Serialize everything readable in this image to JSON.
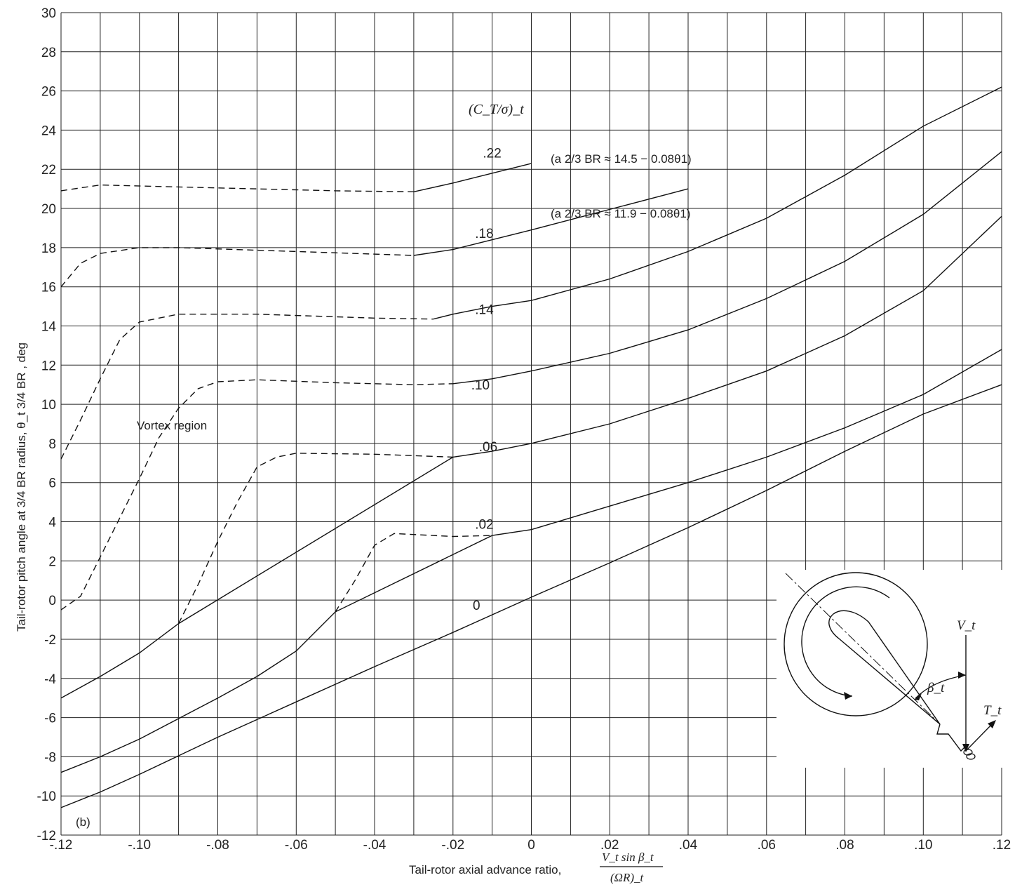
{
  "chart_data": {
    "type": "line",
    "panel_label": "(b)",
    "xlabel": "Tail-rotor axial advance ratio,",
    "xlabel_fraction": {
      "numerator": "V_t sin β_t",
      "denominator": "(ΩR)_t"
    },
    "ylabel": "Tail-rotor pitch angle at 3/4 BR radius, θ_t 3/4 BR , deg",
    "xlim": [
      -0.12,
      0.12
    ],
    "ylim": [
      -12,
      30
    ],
    "x_ticks": [
      "-.12",
      "-.10",
      "-.08",
      "-.06",
      "-.04",
      "-.02",
      "0",
      ".02",
      ".04",
      ".06",
      ".08",
      ".10",
      ".12"
    ],
    "y_ticks": [
      "-12",
      "-10",
      "-8",
      "-6",
      "-4",
      "-2",
      "0",
      "2",
      "4",
      "6",
      "8",
      "10",
      "12",
      "14",
      "16",
      "18",
      "20",
      "22",
      "24",
      "26",
      "28",
      "30"
    ],
    "legend_title": "(C_T/σ)_t",
    "annotations": {
      "vortex_region": "Vortex region",
      "note_upper": "(a 2/3 BR ≈ 14.5 − 0.08θ1)",
      "note_lower": "(a 2/3 BR ≈ 11.9 − 0.08θ1)"
    },
    "series": [
      {
        "name": ".22",
        "label_at": [
          -0.01,
          22.6
        ],
        "dashed": [
          [
            -0.12,
            20.9
          ],
          [
            -0.11,
            21.2
          ],
          [
            -0.09,
            21.1
          ],
          [
            -0.05,
            20.9
          ],
          [
            -0.03,
            20.85
          ]
        ],
        "solid": [
          [
            -0.03,
            20.85
          ],
          [
            -0.02,
            21.3
          ],
          [
            0.0,
            22.3
          ]
        ]
      },
      {
        "name": ".18",
        "label_at": [
          -0.012,
          18.5
        ],
        "dashed": [
          [
            -0.12,
            16.0
          ],
          [
            -0.115,
            17.2
          ],
          [
            -0.11,
            17.7
          ],
          [
            -0.1,
            18.0
          ],
          [
            -0.09,
            18.0
          ],
          [
            -0.06,
            17.8
          ],
          [
            -0.03,
            17.6
          ]
        ],
        "solid": [
          [
            -0.03,
            17.6
          ],
          [
            -0.02,
            17.9
          ],
          [
            0.0,
            18.9
          ],
          [
            0.04,
            21.0
          ]
        ]
      },
      {
        "name": ".14",
        "label_at": [
          -0.012,
          14.6
        ],
        "dashed": [
          [
            -0.12,
            7.2
          ],
          [
            -0.115,
            9.2
          ],
          [
            -0.11,
            11.3
          ],
          [
            -0.105,
            13.3
          ],
          [
            -0.1,
            14.2
          ],
          [
            -0.09,
            14.6
          ],
          [
            -0.07,
            14.6
          ],
          [
            -0.04,
            14.4
          ],
          [
            -0.025,
            14.35
          ]
        ],
        "solid": [
          [
            -0.025,
            14.35
          ],
          [
            -0.02,
            14.6
          ],
          [
            -0.01,
            15.0
          ],
          [
            0.0,
            15.3
          ],
          [
            0.02,
            16.4
          ],
          [
            0.04,
            17.8
          ],
          [
            0.06,
            19.5
          ],
          [
            0.08,
            21.7
          ],
          [
            0.1,
            24.2
          ],
          [
            0.12,
            26.2
          ]
        ]
      },
      {
        "name": ".10",
        "label_at": [
          -0.013,
          10.75
        ],
        "dashed": [
          [
            -0.12,
            -0.5
          ],
          [
            -0.115,
            0.2
          ],
          [
            -0.11,
            2.2
          ],
          [
            -0.105,
            4.2
          ],
          [
            -0.1,
            6.2
          ],
          [
            -0.095,
            8.3
          ],
          [
            -0.09,
            9.8
          ],
          [
            -0.085,
            10.8
          ],
          [
            -0.08,
            11.15
          ],
          [
            -0.07,
            11.25
          ],
          [
            -0.05,
            11.1
          ],
          [
            -0.03,
            11.0
          ],
          [
            -0.02,
            11.05
          ]
        ],
        "solid": [
          [
            -0.02,
            11.05
          ],
          [
            -0.01,
            11.3
          ],
          [
            0.0,
            11.7
          ],
          [
            0.02,
            12.6
          ],
          [
            0.04,
            13.8
          ],
          [
            0.06,
            15.4
          ],
          [
            0.08,
            17.3
          ],
          [
            0.1,
            19.7
          ],
          [
            0.12,
            22.9
          ]
        ]
      },
      {
        "name": ".06",
        "label_at": [
          -0.011,
          7.6
        ],
        "dashed": [
          [
            -0.09,
            -1.2
          ],
          [
            -0.085,
            0.8
          ],
          [
            -0.08,
            3.0
          ],
          [
            -0.075,
            5.0
          ],
          [
            -0.07,
            6.8
          ],
          [
            -0.065,
            7.3
          ],
          [
            -0.06,
            7.5
          ],
          [
            -0.04,
            7.45
          ],
          [
            -0.02,
            7.3
          ]
        ],
        "solid": [
          [
            -0.12,
            -5.0
          ],
          [
            -0.11,
            -3.9
          ],
          [
            -0.1,
            -2.7
          ],
          [
            -0.09,
            -1.2
          ],
          [
            -0.02,
            7.3
          ],
          [
            -0.01,
            7.6
          ],
          [
            0.0,
            8.0
          ],
          [
            0.02,
            9.0
          ],
          [
            0.04,
            10.3
          ],
          [
            0.06,
            11.7
          ],
          [
            0.08,
            13.5
          ],
          [
            0.1,
            15.8
          ],
          [
            0.12,
            19.6
          ]
        ]
      },
      {
        "name": ".02",
        "label_at": [
          -0.012,
          3.65
        ],
        "dashed": [
          [
            -0.05,
            -0.6
          ],
          [
            -0.045,
            1.0
          ],
          [
            -0.04,
            2.8
          ],
          [
            -0.035,
            3.4
          ],
          [
            -0.03,
            3.35
          ],
          [
            -0.02,
            3.25
          ],
          [
            -0.01,
            3.3
          ]
        ],
        "solid": [
          [
            -0.12,
            -8.8
          ],
          [
            -0.11,
            -8.0
          ],
          [
            -0.1,
            -7.1
          ],
          [
            -0.08,
            -5.0
          ],
          [
            -0.07,
            -3.9
          ],
          [
            -0.06,
            -2.6
          ],
          [
            -0.05,
            -0.6
          ],
          [
            -0.01,
            3.3
          ],
          [
            0.0,
            3.6
          ],
          [
            0.02,
            4.8
          ],
          [
            0.04,
            6.0
          ],
          [
            0.06,
            7.3
          ],
          [
            0.08,
            8.8
          ],
          [
            0.1,
            10.5
          ],
          [
            0.12,
            12.8
          ]
        ]
      },
      {
        "name": "0",
        "label_at": [
          -0.014,
          -0.5
        ],
        "solid": [
          [
            -0.12,
            -10.6
          ],
          [
            -0.11,
            -9.8
          ],
          [
            -0.1,
            -8.9
          ],
          [
            -0.08,
            -7.0
          ],
          [
            -0.06,
            -5.2
          ],
          [
            -0.04,
            -3.4
          ],
          [
            -0.02,
            -1.65
          ],
          [
            0.0,
            0.15
          ],
          [
            0.02,
            1.9
          ],
          [
            0.04,
            3.7
          ],
          [
            0.06,
            5.6
          ],
          [
            0.08,
            7.6
          ],
          [
            0.1,
            9.5
          ],
          [
            0.12,
            11.0
          ]
        ]
      }
    ]
  },
  "inset": {
    "velocity_label": "V_t",
    "angle_label": "β_t",
    "thrust_label": "T_t"
  }
}
